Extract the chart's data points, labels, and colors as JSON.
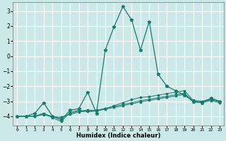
{
  "xlabel": "Humidex (Indice chaleur)",
  "xlim": [
    -0.5,
    23.5
  ],
  "ylim": [
    -4.6,
    3.6
  ],
  "yticks": [
    -4,
    -3,
    -2,
    -1,
    0,
    1,
    2,
    3
  ],
  "xticks": [
    0,
    1,
    2,
    3,
    4,
    5,
    6,
    7,
    8,
    9,
    10,
    11,
    12,
    13,
    14,
    15,
    16,
    17,
    18,
    19,
    20,
    21,
    22,
    23
  ],
  "bg_color": "#cce8e8",
  "grid_color": "#ffffff",
  "line_color": "#1a7a6e",
  "series_x": [
    0,
    1,
    2,
    3,
    4,
    5,
    6,
    7,
    8,
    9,
    10,
    11,
    12,
    13,
    14,
    15,
    16,
    17,
    18,
    19,
    20,
    21,
    22,
    23
  ],
  "series": [
    [
      -4.0,
      -4.0,
      -3.8,
      -3.1,
      -4.0,
      -4.25,
      -3.6,
      -3.5,
      -2.4,
      -3.8,
      0.4,
      1.95,
      3.3,
      2.4,
      0.4,
      2.3,
      -1.2,
      -2.0,
      -2.3,
      -2.6,
      -3.0,
      -3.1,
      -2.8,
      -3.0
    ],
    [
      -4.0,
      -4.0,
      -4.0,
      -3.8,
      -4.1,
      -4.35,
      -3.75,
      -3.6,
      -3.7,
      -3.65,
      -3.5,
      -3.3,
      -3.1,
      -2.9,
      -2.75,
      -2.7,
      -2.6,
      -2.5,
      -2.4,
      -2.3,
      -2.95,
      -3.0,
      -2.85,
      -3.0
    ],
    [
      -4.0,
      -4.0,
      -4.0,
      -3.85,
      -4.0,
      -4.15,
      -3.82,
      -3.65,
      -3.6,
      -3.6,
      -3.48,
      -3.36,
      -3.22,
      -3.1,
      -2.97,
      -2.87,
      -2.77,
      -2.67,
      -2.57,
      -2.47,
      -3.0,
      -3.05,
      -2.9,
      -3.05
    ],
    [
      -4.0,
      -4.0,
      -4.0,
      -3.9,
      -4.05,
      -4.05,
      -3.88,
      -3.72,
      -3.65,
      -3.65,
      -3.53,
      -3.42,
      -3.3,
      -3.18,
      -3.05,
      -2.95,
      -2.85,
      -2.75,
      -2.65,
      -2.55,
      -3.05,
      -3.1,
      -2.96,
      -3.1
    ]
  ]
}
